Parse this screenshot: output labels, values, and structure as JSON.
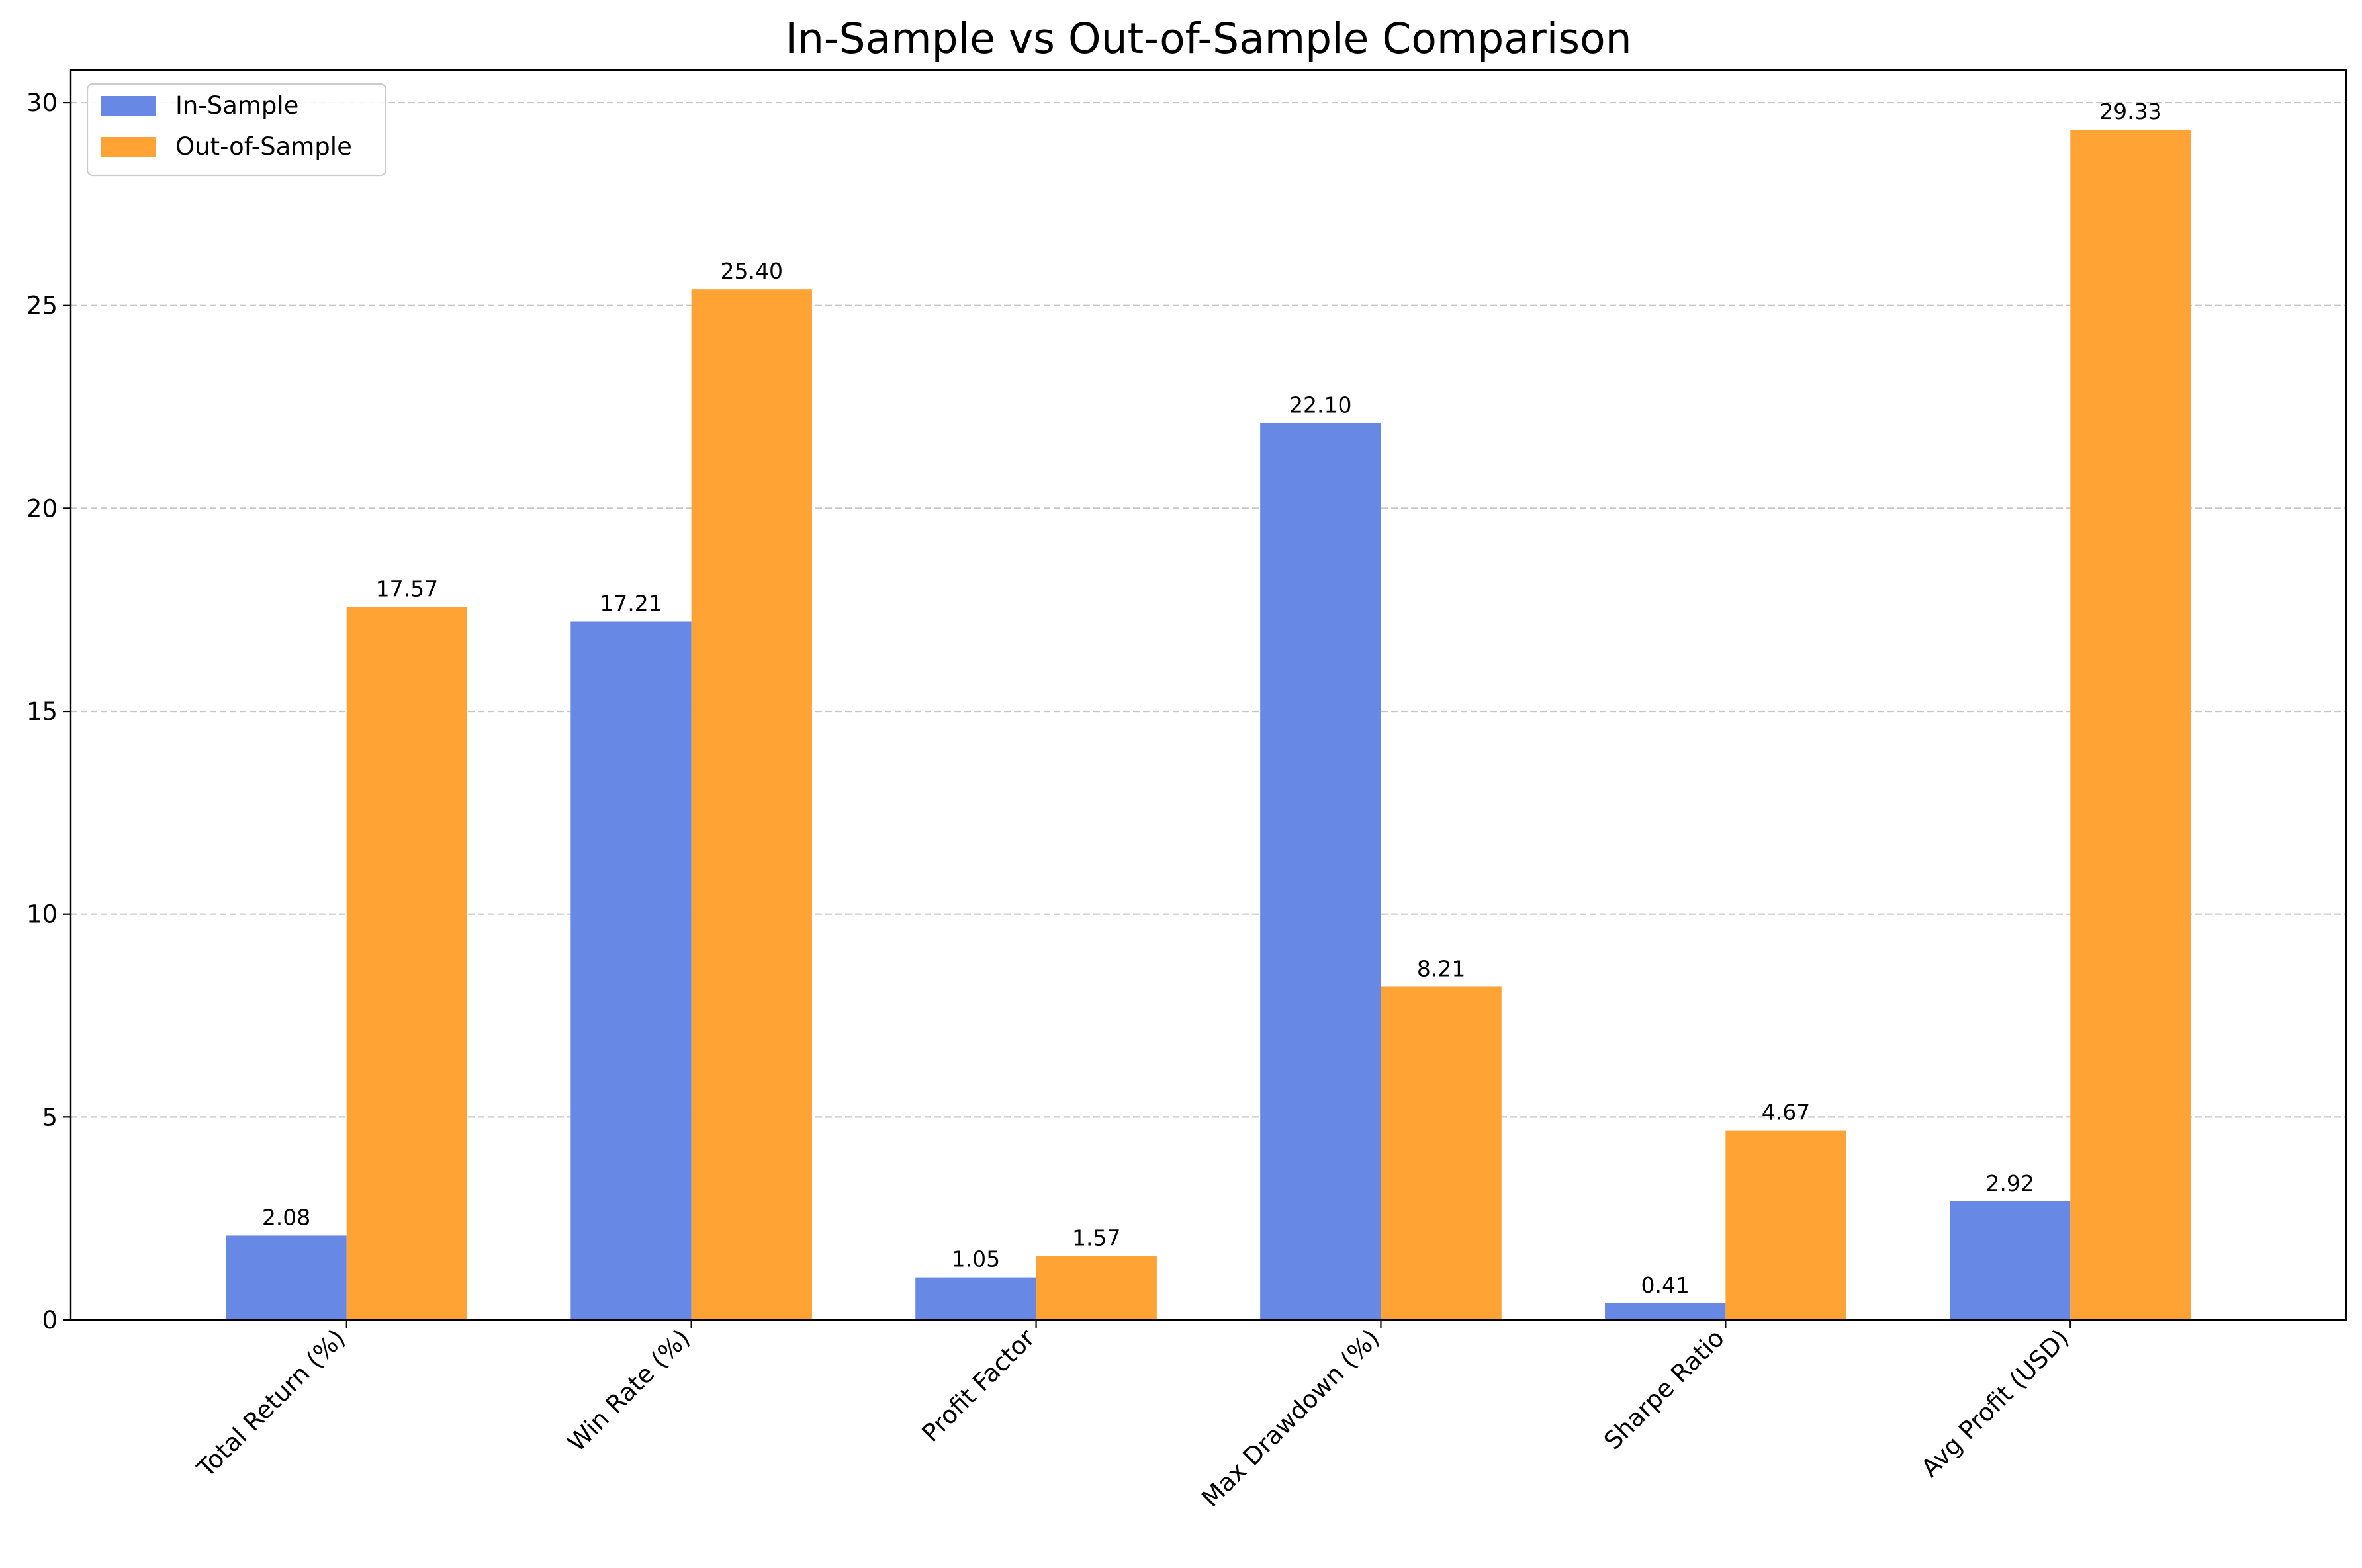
{
  "chart_data": {
    "type": "bar",
    "title": "In-Sample vs Out-of-Sample Comparison",
    "xlabel": "",
    "ylabel": "",
    "categories": [
      "Total Return (%)",
      "Win Rate (%)",
      "Profit Factor",
      "Max Drawdown (%)",
      "Sharpe Ratio",
      "Avg Profit (USD)"
    ],
    "series": [
      {
        "name": "In-Sample",
        "color": "#6888e5",
        "values": [
          2.08,
          17.21,
          1.05,
          22.1,
          0.41,
          2.92
        ],
        "labels": [
          "2.08",
          "17.21",
          "1.05",
          "22.10",
          "0.41",
          "2.92"
        ]
      },
      {
        "name": "Out-of-Sample",
        "color": "#ffa334",
        "values": [
          17.57,
          25.4,
          1.57,
          8.21,
          4.67,
          29.33
        ],
        "labels": [
          "17.57",
          "25.40",
          "1.57",
          "8.21",
          "4.67",
          "29.33"
        ]
      }
    ],
    "ylim": [
      0,
      30.8
    ],
    "yticks": [
      0,
      5,
      10,
      15,
      20,
      25,
      30
    ],
    "ytick_labels": [
      "0",
      "5",
      "10",
      "15",
      "20",
      "25",
      "30"
    ],
    "grid": "y-dashed",
    "legend": "top-left"
  }
}
